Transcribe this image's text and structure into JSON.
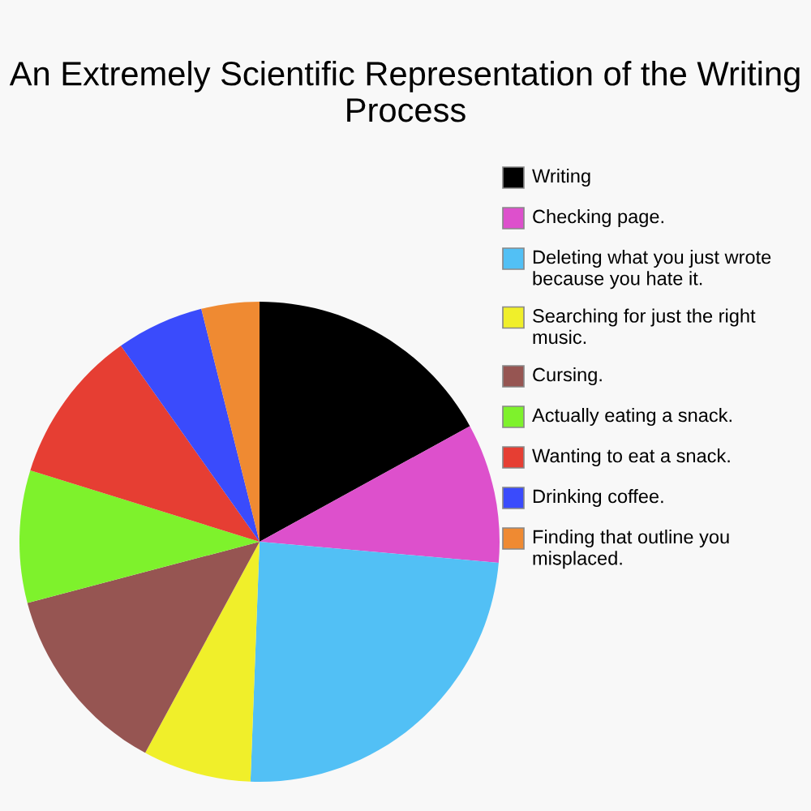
{
  "chart_data": {
    "type": "pie",
    "title": "An Extremely Scientific Representation of the Writing Process",
    "categories": [
      "Writing",
      "Checking page.",
      "Deleting what you just wrote because you hate it.",
      "Searching for just the right music.",
      "Cursing.",
      "Actually eating a snack.",
      "Wanting to eat a snack.",
      "Drinking coffee.",
      "Finding that outline you misplaced."
    ],
    "values": [
      17.0,
      9.4,
      24.2,
      7.3,
      13.0,
      8.9,
      10.4,
      5.9,
      3.9
    ],
    "colors": [
      "#000000",
      "#dd50cc",
      "#52c0f5",
      "#f0ef2a",
      "#965552",
      "#7ef22c",
      "#e63e33",
      "#3a4bfc",
      "#ef8a32"
    ],
    "legend": "right"
  }
}
